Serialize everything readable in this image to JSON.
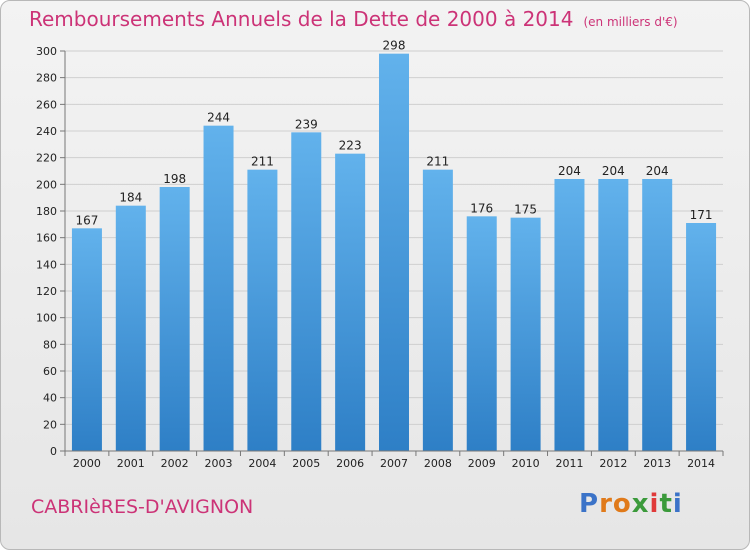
{
  "title": "Remboursements Annuels de la Dette de 2000 à 2014",
  "unit_note": "(en milliers d'€)",
  "town": "CABRIèRES-D'AVIGNON",
  "logo": {
    "letters": [
      "P",
      "r",
      "o",
      "x",
      "i",
      "t",
      "i"
    ],
    "colors": [
      "#3b73c8",
      "#e07a1a",
      "#e07a1a",
      "#3b9a3b",
      "#e03a3a",
      "#3b9a3b",
      "#3b73c8"
    ]
  },
  "colors": {
    "title": "#cc3377",
    "bar_light": "#62b2ec",
    "bar_dark": "#2e7fc6"
  },
  "chart_data": {
    "type": "bar",
    "categories": [
      "2000",
      "2001",
      "2002",
      "2003",
      "2004",
      "2005",
      "2006",
      "2007",
      "2008",
      "2009",
      "2010",
      "2011",
      "2012",
      "2013",
      "2014"
    ],
    "values": [
      167,
      184,
      198,
      244,
      211,
      239,
      223,
      298,
      211,
      176,
      175,
      204,
      204,
      204,
      171
    ],
    "title": "Remboursements Annuels de la Dette de 2000 à 2014",
    "ylim": [
      0,
      300
    ],
    "yticks": [
      0,
      20,
      40,
      60,
      80,
      100,
      120,
      140,
      160,
      180,
      200,
      220,
      240,
      260,
      280,
      300
    ],
    "grid": true
  }
}
